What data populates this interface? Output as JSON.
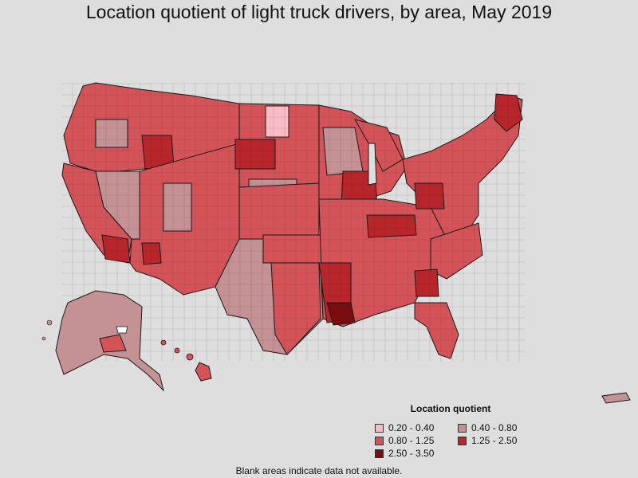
{
  "title": "Location quotient of light truck drivers, by area, May 2019",
  "legend": {
    "title": "Location quotient",
    "items": [
      {
        "label": "0.20 - 0.40",
        "color": "#f7bcc4"
      },
      {
        "label": "0.40 - 0.80",
        "color": "#c49294"
      },
      {
        "label": "0.80 - 1.25",
        "color": "#d45358"
      },
      {
        "label": "1.25 - 2.50",
        "color": "#b8262b"
      },
      {
        "label": "2.50 - 3.50",
        "color": "#7a0c10"
      }
    ]
  },
  "footnote": "Blank areas indicate data not available.",
  "colors": {
    "background": "#dedede",
    "border": "#1a1a1a"
  }
}
